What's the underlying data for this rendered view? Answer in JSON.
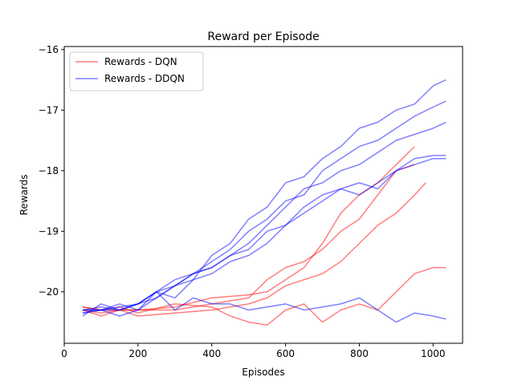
{
  "chart_data": {
    "type": "line",
    "title": "Reward per Episode",
    "xlabel": "Episodes",
    "ylabel": "Rewards",
    "xlim": [
      0,
      1080
    ],
    "ylim": [
      -20.85,
      -15.95
    ],
    "xticks": [
      0,
      200,
      400,
      600,
      800,
      1000
    ],
    "yticks": [
      -20,
      -19,
      -18,
      -17,
      -16
    ],
    "ytick_labels": [
      "−20",
      "−19",
      "−18",
      "−17",
      "−16"
    ],
    "grid": false,
    "legend_position": "top-left",
    "legend": [
      {
        "label": "Rewards - DQN",
        "color": "#ff0000"
      },
      {
        "label": "Rewards - DDQN",
        "color": "#0000ff"
      }
    ],
    "series": [
      {
        "group": "Rewards - DQN",
        "color": "#ff0000",
        "points": [
          [
            50,
            -20.3
          ],
          [
            100,
            -20.35
          ],
          [
            150,
            -20.3
          ],
          [
            200,
            -20.3
          ],
          [
            300,
            -20.25
          ],
          [
            400,
            -20.1
          ],
          [
            500,
            -20.05
          ],
          [
            550,
            -20.0
          ],
          [
            600,
            -19.8
          ],
          [
            650,
            -19.6
          ],
          [
            700,
            -19.2
          ],
          [
            750,
            -18.7
          ],
          [
            800,
            -18.4
          ],
          [
            850,
            -18.2
          ],
          [
            900,
            -17.9
          ],
          [
            950,
            -17.6
          ]
        ]
      },
      {
        "group": "Rewards - DQN",
        "color": "#ff0000",
        "points": [
          [
            50,
            -20.25
          ],
          [
            100,
            -20.3
          ],
          [
            200,
            -20.3
          ],
          [
            300,
            -20.3
          ],
          [
            400,
            -20.2
          ],
          [
            500,
            -20.1
          ],
          [
            550,
            -19.8
          ],
          [
            600,
            -19.6
          ],
          [
            650,
            -19.5
          ],
          [
            700,
            -19.3
          ],
          [
            750,
            -19.0
          ],
          [
            800,
            -18.8
          ],
          [
            850,
            -18.4
          ],
          [
            900,
            -18.0
          ],
          [
            950,
            -17.9
          ]
        ]
      },
      {
        "group": "Rewards - DQN",
        "color": "#ff0000",
        "points": [
          [
            50,
            -20.3
          ],
          [
            100,
            -20.4
          ],
          [
            150,
            -20.3
          ],
          [
            200,
            -20.4
          ],
          [
            300,
            -20.35
          ],
          [
            400,
            -20.3
          ],
          [
            500,
            -20.2
          ],
          [
            550,
            -20.1
          ],
          [
            600,
            -19.9
          ],
          [
            650,
            -19.8
          ],
          [
            700,
            -19.7
          ],
          [
            750,
            -19.5
          ],
          [
            800,
            -19.2
          ],
          [
            850,
            -18.9
          ],
          [
            900,
            -18.7
          ],
          [
            950,
            -18.4
          ],
          [
            980,
            -18.2
          ]
        ]
      },
      {
        "group": "Rewards - DQN",
        "color": "#ff0000",
        "points": [
          [
            50,
            -20.25
          ],
          [
            100,
            -20.3
          ],
          [
            150,
            -20.25
          ],
          [
            200,
            -20.35
          ],
          [
            300,
            -20.2
          ],
          [
            400,
            -20.25
          ],
          [
            450,
            -20.4
          ],
          [
            500,
            -20.5
          ],
          [
            550,
            -20.55
          ],
          [
            600,
            -20.3
          ],
          [
            650,
            -20.2
          ],
          [
            700,
            -20.5
          ],
          [
            750,
            -20.3
          ],
          [
            800,
            -20.2
          ],
          [
            850,
            -20.3
          ],
          [
            900,
            -20.0
          ],
          [
            950,
            -19.7
          ],
          [
            1000,
            -19.6
          ],
          [
            1035,
            -19.6
          ]
        ]
      },
      {
        "group": "Rewards - DDQN",
        "color": "#0000ff",
        "points": [
          [
            50,
            -20.3
          ],
          [
            100,
            -20.25
          ],
          [
            150,
            -20.3
          ],
          [
            200,
            -20.2
          ],
          [
            250,
            -20.1
          ],
          [
            300,
            -19.9
          ],
          [
            350,
            -19.8
          ],
          [
            400,
            -19.4
          ],
          [
            450,
            -19.2
          ],
          [
            500,
            -18.8
          ],
          [
            550,
            -18.6
          ],
          [
            600,
            -18.2
          ],
          [
            650,
            -18.1
          ],
          [
            700,
            -17.8
          ],
          [
            750,
            -17.6
          ],
          [
            800,
            -17.3
          ],
          [
            850,
            -17.2
          ],
          [
            900,
            -17.0
          ],
          [
            950,
            -16.9
          ],
          [
            1000,
            -16.6
          ],
          [
            1035,
            -16.5
          ]
        ]
      },
      {
        "group": "Rewards - DDQN",
        "color": "#0000ff",
        "points": [
          [
            50,
            -20.35
          ],
          [
            100,
            -20.3
          ],
          [
            150,
            -20.25
          ],
          [
            200,
            -20.2
          ],
          [
            250,
            -20.0
          ],
          [
            300,
            -19.8
          ],
          [
            350,
            -19.7
          ],
          [
            400,
            -19.5
          ],
          [
            450,
            -19.3
          ],
          [
            500,
            -19.0
          ],
          [
            550,
            -18.8
          ],
          [
            600,
            -18.5
          ],
          [
            650,
            -18.4
          ],
          [
            700,
            -18.0
          ],
          [
            750,
            -17.8
          ],
          [
            800,
            -17.6
          ],
          [
            850,
            -17.5
          ],
          [
            900,
            -17.3
          ],
          [
            950,
            -17.1
          ],
          [
            1000,
            -16.95
          ],
          [
            1035,
            -16.85
          ]
        ]
      },
      {
        "group": "Rewards - DDQN",
        "color": "#0000ff",
        "points": [
          [
            50,
            -20.3
          ],
          [
            100,
            -20.3
          ],
          [
            150,
            -20.2
          ],
          [
            200,
            -20.3
          ],
          [
            250,
            -20.1
          ],
          [
            300,
            -19.9
          ],
          [
            350,
            -19.7
          ],
          [
            400,
            -19.6
          ],
          [
            450,
            -19.4
          ],
          [
            500,
            -19.2
          ],
          [
            550,
            -18.9
          ],
          [
            600,
            -18.6
          ],
          [
            650,
            -18.3
          ],
          [
            700,
            -18.2
          ],
          [
            750,
            -18.0
          ],
          [
            800,
            -17.9
          ],
          [
            850,
            -17.7
          ],
          [
            900,
            -17.5
          ],
          [
            950,
            -17.4
          ],
          [
            1000,
            -17.3
          ],
          [
            1035,
            -17.2
          ]
        ]
      },
      {
        "group": "Rewards - DDQN",
        "color": "#0000ff",
        "points": [
          [
            50,
            -20.35
          ],
          [
            100,
            -20.3
          ],
          [
            150,
            -20.3
          ],
          [
            200,
            -20.2
          ],
          [
            250,
            -20.0
          ],
          [
            300,
            -19.9
          ],
          [
            350,
            -19.7
          ],
          [
            400,
            -19.6
          ],
          [
            450,
            -19.4
          ],
          [
            500,
            -19.3
          ],
          [
            550,
            -19.0
          ],
          [
            600,
            -18.9
          ],
          [
            650,
            -18.6
          ],
          [
            700,
            -18.4
          ],
          [
            750,
            -18.3
          ],
          [
            800,
            -18.4
          ],
          [
            850,
            -18.2
          ],
          [
            900,
            -18.0
          ],
          [
            950,
            -17.8
          ],
          [
            1000,
            -17.75
          ],
          [
            1035,
            -17.75
          ]
        ]
      },
      {
        "group": "Rewards - DDQN",
        "color": "#0000ff",
        "points": [
          [
            50,
            -20.3
          ],
          [
            100,
            -20.3
          ],
          [
            150,
            -20.4
          ],
          [
            200,
            -20.3
          ],
          [
            250,
            -20.0
          ],
          [
            300,
            -20.1
          ],
          [
            350,
            -19.8
          ],
          [
            400,
            -19.7
          ],
          [
            450,
            -19.5
          ],
          [
            500,
            -19.4
          ],
          [
            550,
            -19.2
          ],
          [
            600,
            -18.9
          ],
          [
            650,
            -18.7
          ],
          [
            700,
            -18.5
          ],
          [
            750,
            -18.3
          ],
          [
            800,
            -18.2
          ],
          [
            850,
            -18.3
          ],
          [
            900,
            -18.0
          ],
          [
            950,
            -17.9
          ],
          [
            1000,
            -17.8
          ],
          [
            1035,
            -17.8
          ]
        ]
      },
      {
        "group": "Rewards - DDQN",
        "color": "#0000ff",
        "points": [
          [
            50,
            -20.4
          ],
          [
            100,
            -20.2
          ],
          [
            150,
            -20.3
          ],
          [
            200,
            -20.2
          ],
          [
            250,
            -20.0
          ],
          [
            300,
            -20.3
          ],
          [
            350,
            -20.1
          ],
          [
            400,
            -20.2
          ],
          [
            450,
            -20.2
          ],
          [
            500,
            -20.3
          ],
          [
            550,
            -20.25
          ],
          [
            600,
            -20.2
          ],
          [
            650,
            -20.3
          ],
          [
            700,
            -20.25
          ],
          [
            750,
            -20.2
          ],
          [
            800,
            -20.1
          ],
          [
            850,
            -20.3
          ],
          [
            900,
            -20.5
          ],
          [
            950,
            -20.35
          ],
          [
            1000,
            -20.4
          ],
          [
            1035,
            -20.45
          ]
        ]
      }
    ]
  }
}
